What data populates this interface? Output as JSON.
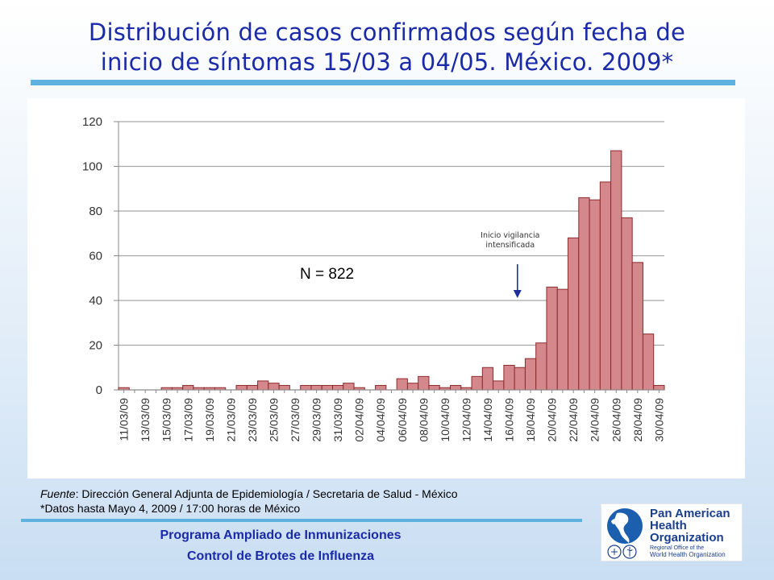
{
  "title": {
    "line1": "Distribución de casos confirmados según fecha de",
    "line2": "inicio de síntomas 15/03 a 04/05. México. 2009*"
  },
  "chart_data": {
    "type": "bar",
    "categories": [
      "11/03/09",
      "12/03/09",
      "13/03/09",
      "14/03/09",
      "15/03/09",
      "16/03/09",
      "17/03/09",
      "18/03/09",
      "19/03/09",
      "20/03/09",
      "21/03/09",
      "22/03/09",
      "23/03/09",
      "24/03/09",
      "25/03/09",
      "26/03/09",
      "27/03/09",
      "28/03/09",
      "29/03/09",
      "30/03/09",
      "31/03/09",
      "01/04/09",
      "02/04/09",
      "03/04/09",
      "04/04/09",
      "05/04/09",
      "06/04/09",
      "07/04/09",
      "08/04/09",
      "09/04/09",
      "10/04/09",
      "11/04/09",
      "12/04/09",
      "13/04/09",
      "14/04/09",
      "15/04/09",
      "16/04/09",
      "17/04/09",
      "18/04/09",
      "19/04/09",
      "20/04/09",
      "21/04/09",
      "22/04/09",
      "23/04/09",
      "24/04/09",
      "25/04/09",
      "26/04/09",
      "27/04/09",
      "28/04/09",
      "29/04/09",
      "30/04/09"
    ],
    "tick_labels": [
      "11/03/09",
      "13/03/09",
      "15/03/09",
      "17/03/09",
      "19/03/09",
      "21/03/09",
      "23/03/09",
      "25/03/09",
      "27/03/09",
      "29/03/09",
      "31/03/09",
      "02/04/09",
      "04/04/09",
      "06/04/09",
      "08/04/09",
      "10/04/09",
      "12/04/09",
      "14/04/09",
      "16/04/09",
      "18/04/09",
      "20/04/09",
      "22/04/09",
      "24/04/09",
      "26/04/09",
      "28/04/09",
      "30/04/09"
    ],
    "values": [
      1,
      0,
      0,
      0,
      1,
      1,
      2,
      1,
      1,
      1,
      0,
      2,
      2,
      4,
      3,
      2,
      0,
      2,
      2,
      2,
      2,
      3,
      1,
      0,
      2,
      0,
      5,
      3,
      6,
      2,
      1,
      2,
      1,
      6,
      10,
      4,
      11,
      10,
      14,
      21,
      46,
      45,
      68,
      86,
      85,
      93,
      107,
      77,
      57,
      25,
      2
    ],
    "yticks": [
      0,
      20,
      40,
      60,
      80,
      100,
      120
    ],
    "ylim": [
      0,
      120
    ],
    "grid": true,
    "bar_color": "#d4888b",
    "bar_edge": "#8c2a2e",
    "annotation": {
      "label": "N = 822",
      "arrow_label_line1": "Inicio vigilancia",
      "arrow_label_line2": "intensificada",
      "arrow_category": "17/04/09",
      "arrow_color": "#1f2f9c"
    }
  },
  "source": {
    "fuente_label": "Fuente",
    "fuente_text": ": Dirección General Adjunta de Epidemiología / Secretaria de Salud - México",
    "note": "*Datos hasta Mayo 4, 2009 / 17:00 horas de México"
  },
  "program": {
    "line1": "Programa Ampliado de Inmunizaciones",
    "line2": "Control de Brotes de Influenza"
  },
  "logo": {
    "line1": "Pan American",
    "line2": "Health",
    "line3": "Organization",
    "sub1": "Regional Office of the",
    "sub2": "World Health Organization"
  },
  "colors": {
    "title": "#1a2aa8",
    "rule": "#5fb2df",
    "logo_text": "#1b3f8f"
  }
}
